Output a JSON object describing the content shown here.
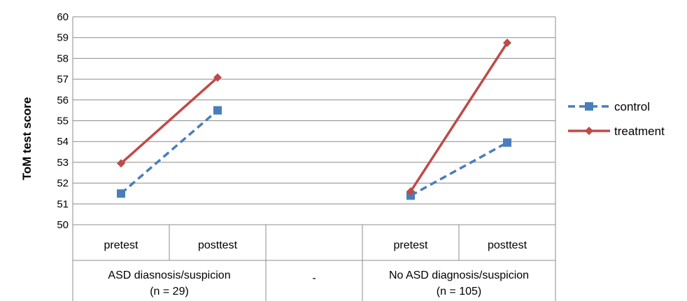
{
  "chart_data": {
    "type": "line",
    "ylabel": "ToM test score",
    "ylim": [
      50,
      60
    ],
    "yticks": [
      50,
      51,
      52,
      53,
      54,
      55,
      56,
      57,
      58,
      59,
      60
    ],
    "x_sublabels": [
      "pretest",
      "posttest",
      "",
      "pretest",
      "posttest"
    ],
    "groups": [
      {
        "label_line1": "ASD diasnosis/suspicion",
        "label_line2": "(n = 29)"
      },
      {
        "label_line1": "-",
        "label_line2": ""
      },
      {
        "label_line1": "No ASD diagnosis/suspicion",
        "label_line2": "(n = 105)"
      }
    ],
    "legend_position": "right",
    "grid": true,
    "series": [
      {
        "name": "control",
        "color": "#4a7ebb",
        "style": "dashed",
        "marker": "square",
        "segments": [
          {
            "group": 0,
            "values": [
              51.5,
              55.5
            ]
          },
          {
            "group": 2,
            "values": [
              51.4,
              53.95
            ]
          }
        ]
      },
      {
        "name": "treatment",
        "color": "#be4b48",
        "style": "solid",
        "marker": "diamond",
        "segments": [
          {
            "group": 0,
            "values": [
              52.95,
              57.08
            ]
          },
          {
            "group": 2,
            "values": [
              51.6,
              58.75
            ]
          }
        ]
      }
    ]
  }
}
